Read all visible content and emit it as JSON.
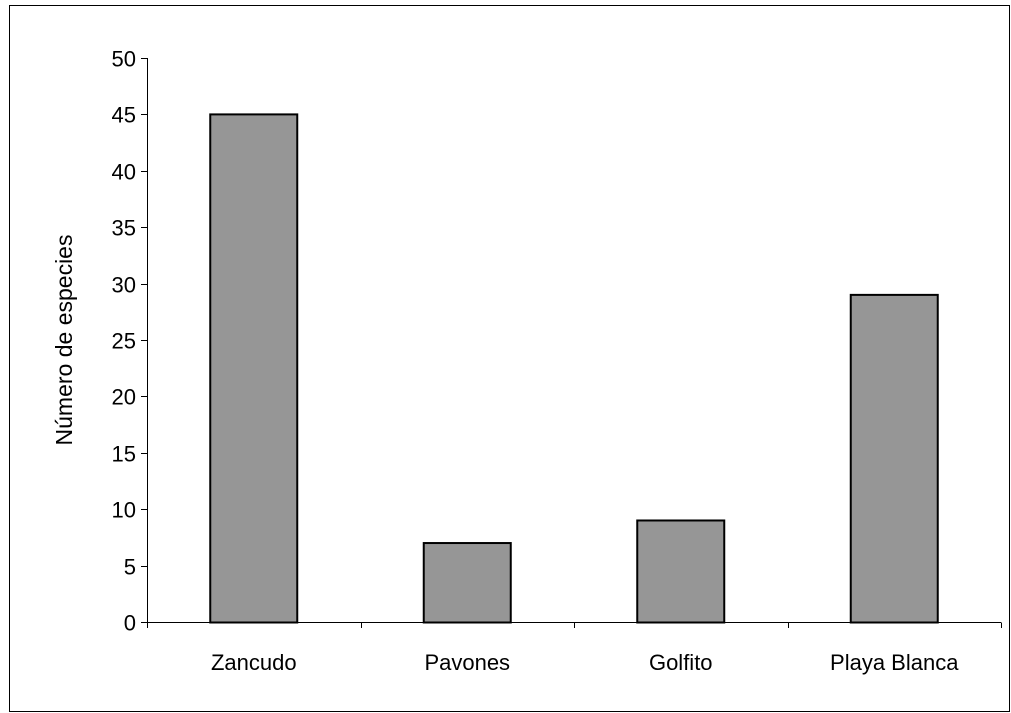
{
  "chart_data": {
    "type": "bar",
    "title": "",
    "xlabel": "",
    "ylabel": "Número de especies",
    "categories": [
      "Zancudo",
      "Pavones",
      "Golfito",
      "Playa Blanca"
    ],
    "values": [
      45,
      7,
      9,
      29
    ],
    "ylim": [
      0,
      50
    ],
    "yticks": [
      0,
      5,
      10,
      15,
      20,
      25,
      30,
      35,
      40,
      45,
      50
    ],
    "grid": false,
    "legend": "none",
    "colors": {
      "bar_fill": "#969696",
      "bar_stroke": "#000000",
      "axis": "#000000",
      "frame": "#000000"
    }
  }
}
